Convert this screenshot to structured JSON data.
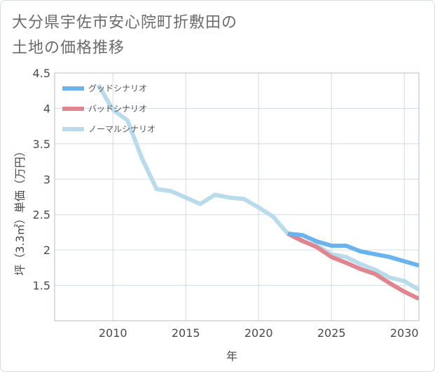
{
  "title_lines": [
    "大分県宇佐市安心院町折敷田の",
    "土地の価格推移"
  ],
  "colors": {
    "good": "#6ab4ee",
    "bad": "#e0858d",
    "normal": "#b8dceb",
    "grid": "#cfdbe4",
    "axis": "#b0bcc6"
  },
  "chart_data": {
    "type": "line",
    "xlabel": "年",
    "ylabel": "坪（3.3㎡）単価（万円）",
    "xlim": [
      2006,
      2031
    ],
    "ylim": [
      1.0,
      4.5
    ],
    "x_ticks": [
      {
        "value": 2010,
        "label": "2010"
      },
      {
        "value": 2015,
        "label": "2015"
      },
      {
        "value": 2020,
        "label": "2020"
      },
      {
        "value": 2025,
        "label": "2025"
      },
      {
        "value": 2030,
        "label": "2030"
      }
    ],
    "y_ticks": [
      {
        "value": 1.5,
        "label": "1.5"
      },
      {
        "value": 2.0,
        "label": "2"
      },
      {
        "value": 2.5,
        "label": "2.5"
      },
      {
        "value": 3.0,
        "label": "3"
      },
      {
        "value": 3.5,
        "label": "3.5"
      },
      {
        "value": 4.0,
        "label": "4"
      },
      {
        "value": 4.5,
        "label": "4.5"
      }
    ],
    "grid": true,
    "legend_position": "top-left",
    "series": [
      {
        "key": "good",
        "name": "グッドシナリオ",
        "points": [
          [
            2022,
            2.23
          ],
          [
            2023,
            2.21
          ],
          [
            2024,
            2.12
          ],
          [
            2025,
            2.06
          ],
          [
            2026,
            2.06
          ],
          [
            2027,
            1.98
          ],
          [
            2028,
            1.94
          ],
          [
            2029,
            1.9
          ],
          [
            2030,
            1.84
          ],
          [
            2031,
            1.78
          ]
        ]
      },
      {
        "key": "bad",
        "name": "バッドシナリオ",
        "points": [
          [
            2022,
            2.23
          ],
          [
            2023,
            2.13
          ],
          [
            2024,
            2.04
          ],
          [
            2025,
            1.9
          ],
          [
            2026,
            1.82
          ],
          [
            2027,
            1.73
          ],
          [
            2028,
            1.66
          ],
          [
            2029,
            1.53
          ],
          [
            2030,
            1.41
          ],
          [
            2031,
            1.31
          ]
        ]
      },
      {
        "key": "normal",
        "name": "ノーマルシナリオ",
        "points": [
          [
            2009,
            4.33
          ],
          [
            2010,
            3.98
          ],
          [
            2011,
            3.83
          ],
          [
            2012,
            3.29
          ],
          [
            2013,
            2.86
          ],
          [
            2014,
            2.83
          ],
          [
            2015,
            2.74
          ],
          [
            2016,
            2.65
          ],
          [
            2017,
            2.78
          ],
          [
            2018,
            2.74
          ],
          [
            2019,
            2.72
          ],
          [
            2020,
            2.6
          ],
          [
            2021,
            2.47
          ],
          [
            2022,
            2.23
          ],
          [
            2023,
            2.12
          ],
          [
            2024,
            2.06
          ],
          [
            2025,
            1.94
          ],
          [
            2026,
            1.9
          ],
          [
            2027,
            1.8
          ],
          [
            2028,
            1.72
          ],
          [
            2029,
            1.61
          ],
          [
            2030,
            1.56
          ],
          [
            2031,
            1.44
          ]
        ]
      }
    ]
  }
}
